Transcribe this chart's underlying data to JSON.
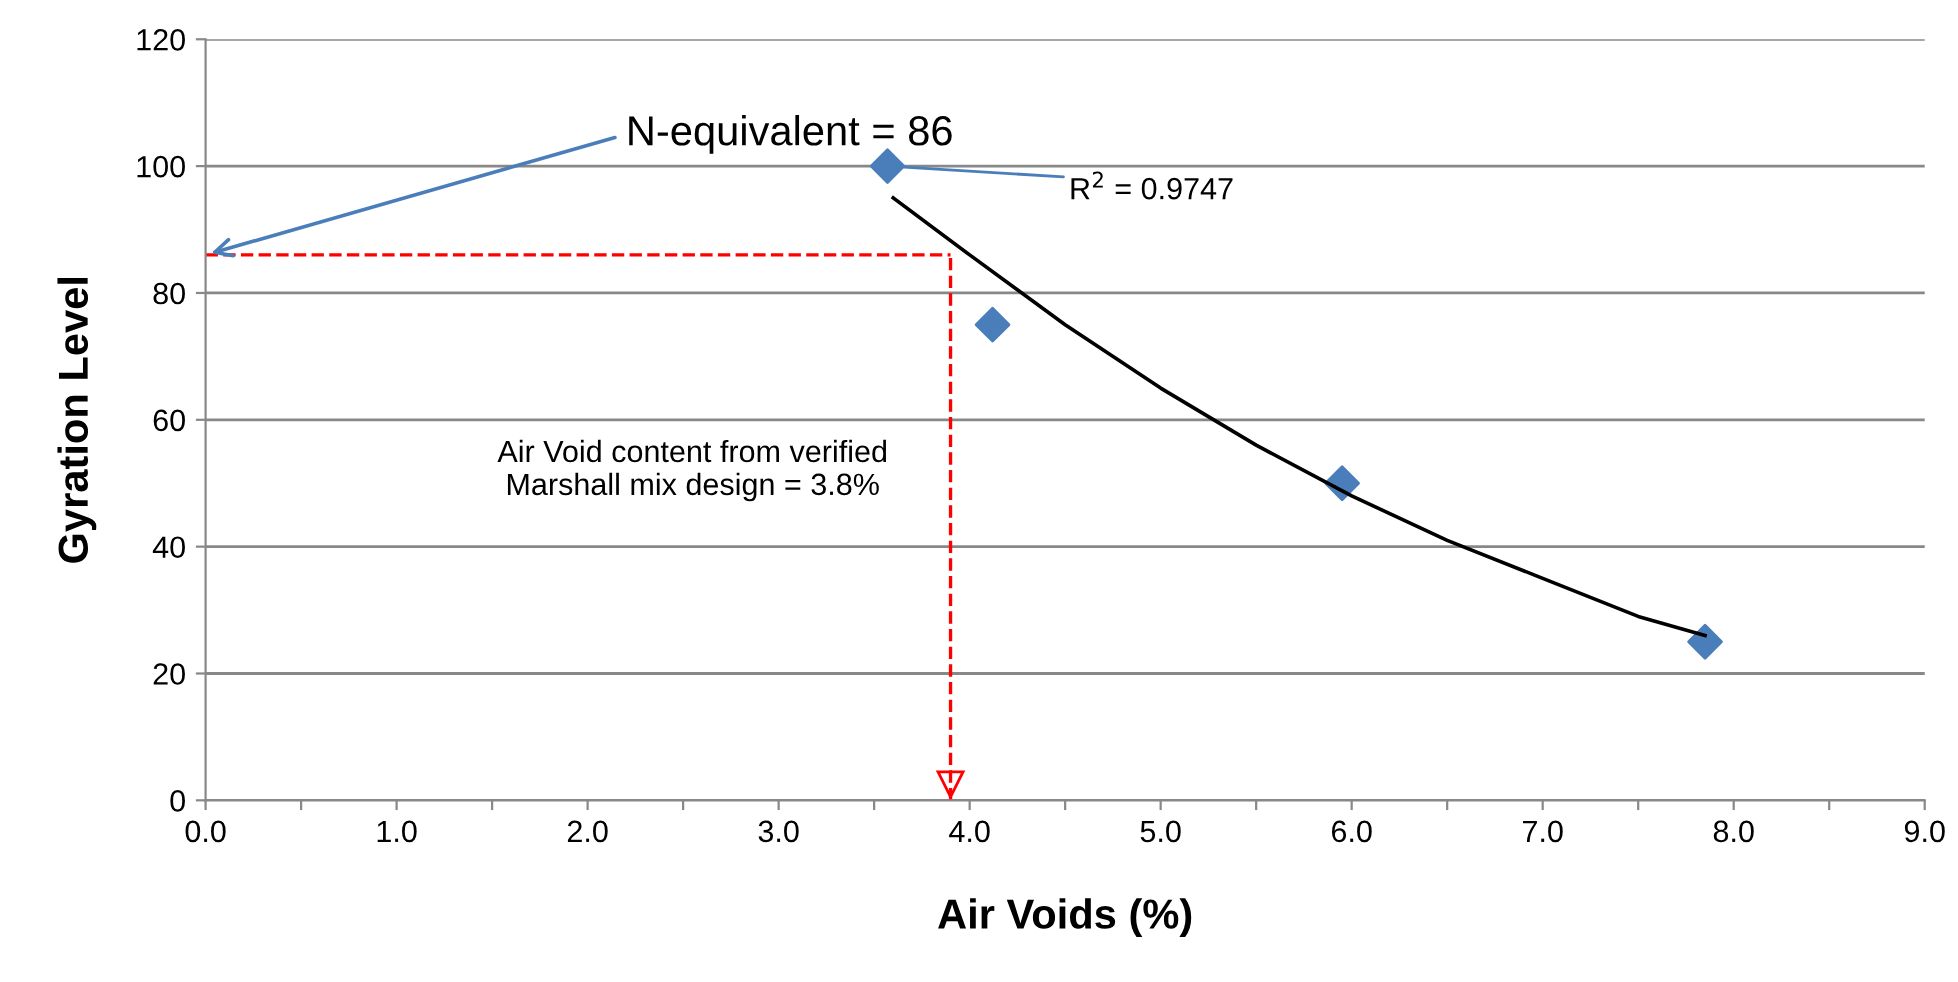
{
  "chart_data": {
    "type": "scatter",
    "xlabel": "Air Voids (%)",
    "ylabel": "Gyration Level",
    "series": [
      {
        "color": "#4a7ebb",
        "marker": "diamond",
        "x": [
          3.57,
          4.12,
          5.95,
          7.85
        ],
        "values": [
          100,
          75,
          50,
          25
        ]
      },
      {
        "type": "line",
        "color": "#000000",
        "line_style": "solid",
        "x": [
          3.6,
          4.0,
          4.5,
          5.0,
          5.5,
          6.0,
          6.5,
          7.0,
          7.5,
          7.85
        ],
        "values": [
          95,
          86,
          75,
          65,
          56,
          48,
          41,
          35,
          29,
          26
        ]
      }
    ],
    "xlim": [
      0,
      9
    ],
    "ylim": [
      0,
      120
    ],
    "xticks": [
      {
        "value": 0,
        "label": "0.0"
      },
      {
        "value": 0.5,
        "label": null
      },
      {
        "value": 1,
        "label": "1.0"
      },
      {
        "value": 1.5,
        "label": null
      },
      {
        "value": 2,
        "label": "2.0"
      },
      {
        "value": 2.5,
        "label": null
      },
      {
        "value": 3,
        "label": "3.0"
      },
      {
        "value": 3.5,
        "label": null
      },
      {
        "value": 4,
        "label": "4.0"
      },
      {
        "value": 4.5,
        "label": null
      },
      {
        "value": 5,
        "label": "5.0"
      },
      {
        "value": 5.5,
        "label": null
      },
      {
        "value": 6,
        "label": "6.0"
      },
      {
        "value": 6.5,
        "label": null
      },
      {
        "value": 7,
        "label": "7.0"
      },
      {
        "value": 7.5,
        "label": null
      },
      {
        "value": 8,
        "label": "8.0"
      },
      {
        "value": 8.5,
        "label": null
      },
      {
        "value": 9,
        "label": "9.0"
      }
    ],
    "yticks": [
      0,
      20,
      40,
      60,
      80,
      100,
      120
    ],
    "grid": "y",
    "legend": false,
    "ref_lines": [
      {
        "axis": "y",
        "value": 86,
        "color": "#ff0000",
        "line_style": "dashed"
      },
      {
        "axis": "x",
        "value": 3.9,
        "color": "#ff0000",
        "line_style": "dashed"
      }
    ],
    "annotations": [
      {
        "text": "N-equivalent = 86",
        "x": 0,
        "y": 86
      },
      {
        "text": "R$^{2}$ = 0.9747",
        "x": 3.57,
        "y": 100
      },
      "Air Void content from verified\nMarshall mix design = 3.8%"
    ]
  }
}
